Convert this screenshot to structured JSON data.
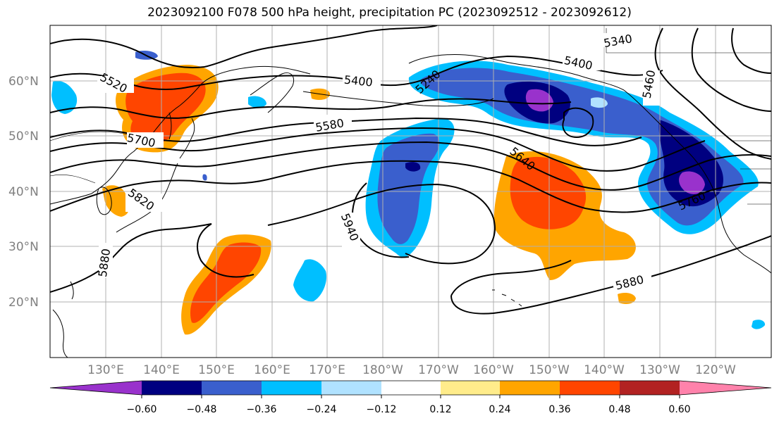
{
  "title": "2023092100 F078 500 hPa height, precipitation PC (2023092512 - 2023092612)",
  "lat_labels": [
    "60°N",
    "50°N",
    "40°N",
    "30°N",
    "20°N"
  ],
  "lon_labels": [
    "130°E",
    "140°E",
    "150°E",
    "160°E",
    "170°E",
    "180°W",
    "170°W",
    "160°W",
    "150°W",
    "140°W",
    "130°W",
    "120°W"
  ],
  "height_contour_labels": [
    "5340",
    "5400",
    "5400",
    "5460",
    "5520",
    "5240",
    "5580",
    "5700",
    "5640",
    "5760",
    "5820",
    "5940",
    "5880",
    "5880"
  ],
  "colorbar": {
    "colors": [
      "#9932cc",
      "#000080",
      "#3a5fcd",
      "#00bfff",
      "#b0e2ff",
      "#ffffff",
      "#ffec8b",
      "#ffa500",
      "#ff4500",
      "#b22222",
      "#ff82ab"
    ],
    "tick_labels": [
      "−0.60",
      "−0.48",
      "−0.36",
      "−0.24",
      "−0.12",
      "0.12",
      "0.24",
      "0.36",
      "0.48",
      "0.60"
    ]
  }
}
